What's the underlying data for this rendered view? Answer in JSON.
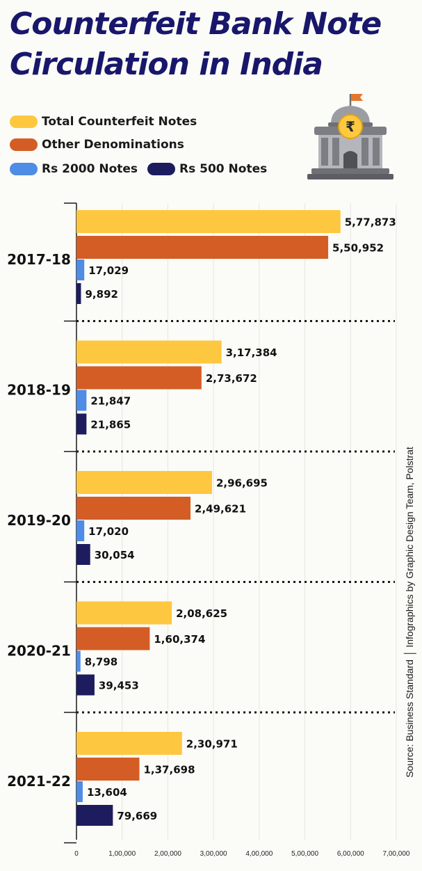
{
  "title": "Counterfeit Bank Note Circulation in India",
  "legend": [
    {
      "label": "Total Counterfeit Notes",
      "color": "#fec740"
    },
    {
      "label": "Other Denominations",
      "color": "#d45d25"
    },
    {
      "label": "Rs 2000 Notes",
      "color": "#4e8ce6"
    },
    {
      "label": "Rs 500 Notes",
      "color": "#1d1c5f"
    }
  ],
  "icon": "bank-rupee-icon",
  "source": "Source: Business Standard",
  "credit": "Infographics by Graphic Design Team, Polstrat",
  "chart_data": {
    "type": "bar",
    "orientation": "horizontal",
    "title": "Counterfeit Bank Note Circulation in India",
    "categories": [
      "2017-18",
      "2018-19",
      "2019-20",
      "2020-21",
      "2021-22"
    ],
    "series": [
      {
        "name": "Total Counterfeit Notes",
        "values": [
          577873,
          317384,
          296695,
          208625,
          230971
        ],
        "labels": [
          "5,77,873",
          "3,17,384",
          "2,96,695",
          "2,08,625",
          "2,30,971"
        ]
      },
      {
        "name": "Other Denominations",
        "values": [
          550952,
          273672,
          249621,
          160374,
          137698
        ],
        "labels": [
          "5,50,952",
          "2,73,672",
          "2,49,621",
          "1,60,374",
          "1,37,698"
        ]
      },
      {
        "name": "Rs 2000 Notes",
        "values": [
          17029,
          21847,
          17020,
          8798,
          13604
        ],
        "labels": [
          "17,029",
          "21,847",
          "17,020",
          "8,798",
          "13,604"
        ]
      },
      {
        "name": "Rs 500 Notes",
        "values": [
          9892,
          21865,
          30054,
          39453,
          79669
        ],
        "labels": [
          "9,892",
          "21,865",
          "30,054",
          "39,453",
          "79,669"
        ]
      }
    ],
    "xlim": [
      0,
      700000
    ],
    "xticks": [
      0,
      100000,
      200000,
      300000,
      400000,
      500000,
      600000,
      700000
    ],
    "xtick_labels": [
      "0",
      "1,00,000",
      "2,00,000",
      "3,00,000",
      "4,00,000",
      "5,00,000",
      "6,00,000",
      "7,00,000"
    ],
    "grid": true
  }
}
